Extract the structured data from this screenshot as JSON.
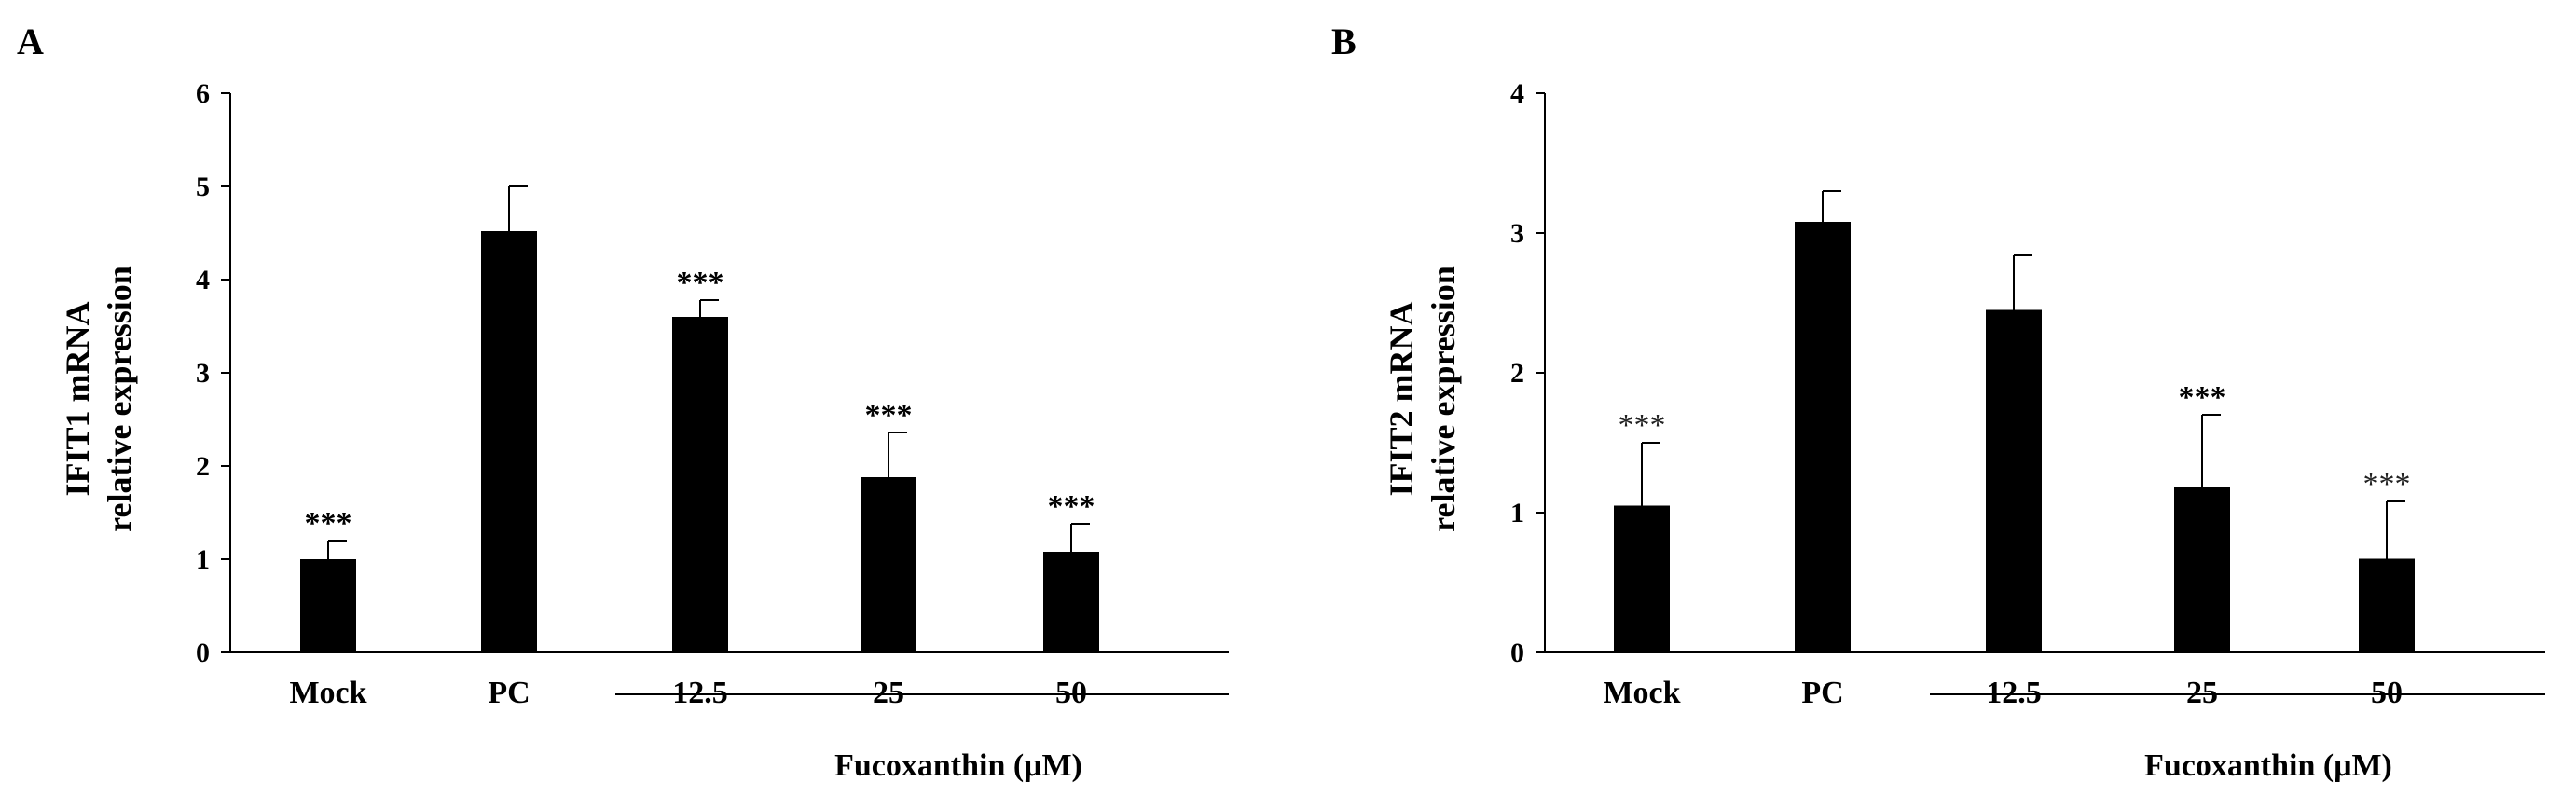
{
  "chart_data": [
    {
      "panel": "A",
      "type": "bar",
      "ylabel_line1": "IFIT1 mRNA",
      "ylabel_line2": "relative expression",
      "categories": [
        "Mock",
        "PC",
        "12.5",
        "25",
        "50"
      ],
      "values": [
        1.0,
        4.52,
        3.6,
        1.88,
        1.08
      ],
      "errors": [
        0.2,
        0.48,
        0.18,
        0.48,
        0.3
      ],
      "significance": [
        "***",
        "",
        "***",
        "***",
        "***"
      ],
      "ylim": [
        0,
        6
      ],
      "yticks": [
        "0",
        "1",
        "2",
        "3",
        "4",
        "5",
        "6"
      ],
      "group_label": "Fucoxanthin (μM)"
    },
    {
      "panel": "B",
      "type": "bar",
      "ylabel_line1": "IFIT2 mRNA",
      "ylabel_line2": "relative expression",
      "categories": [
        "Mock",
        "PC",
        "12.5",
        "25",
        "50"
      ],
      "values": [
        1.05,
        3.08,
        2.45,
        1.18,
        0.67
      ],
      "errors": [
        0.45,
        0.22,
        0.39,
        0.52,
        0.41
      ],
      "significance": [
        "***",
        "",
        "",
        "***",
        "***"
      ],
      "ylim": [
        0,
        4
      ],
      "yticks": [
        "0",
        "1",
        "2",
        "3",
        "4"
      ],
      "group_label": "Fucoxanthin (μM)"
    }
  ]
}
